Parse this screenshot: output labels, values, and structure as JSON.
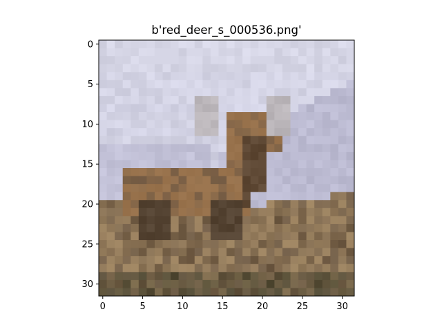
{
  "figure": {
    "title": "b'red_deer_s_000536.png'"
  },
  "image": {
    "subject": "red deer standing on a grassy hillside under a pale lavender sky",
    "resolution": [
      32,
      32
    ]
  },
  "x_axis": {
    "ticks": [
      0,
      5,
      10,
      15,
      20,
      25,
      30
    ],
    "range": [
      -0.5,
      31.5
    ]
  },
  "y_axis": {
    "ticks": [
      0,
      5,
      10,
      15,
      20,
      25,
      30
    ],
    "range": [
      -0.5,
      31.5
    ]
  },
  "colors": {
    "sky": "#cdcde0",
    "sky_light": "#d6d6e6",
    "distant_hill": "#b5b3cc",
    "deer_body": "#9c7650",
    "deer_dark": "#4a3a2c",
    "ground": "#a48a66",
    "ground_dark": "#6e5a44",
    "grass_dark": "#3e3e2a"
  }
}
